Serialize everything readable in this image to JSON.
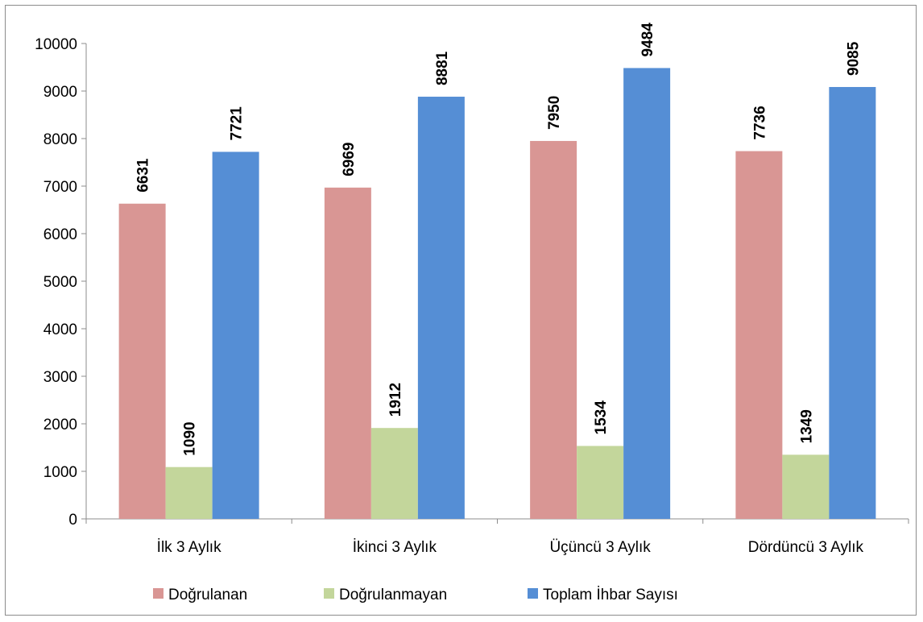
{
  "chart_data": {
    "type": "bar",
    "categories": [
      "İlk 3 Aylık",
      "İkinci 3 Aylık",
      "Üçüncü 3 Aylık",
      "Dördüncü 3 Aylık"
    ],
    "series": [
      {
        "name": "Doğrulanan",
        "values": [
          6631,
          6969,
          7950,
          7736
        ],
        "color": "#d99694"
      },
      {
        "name": "Doğrulanmayan",
        "values": [
          1090,
          1912,
          1534,
          1349
        ],
        "color": "#c3d69b"
      },
      {
        "name": "Toplam İhbar Sayısı",
        "values": [
          7721,
          8881,
          9484,
          9085
        ],
        "color": "#558ed5"
      }
    ],
    "ylim": [
      0,
      10000
    ],
    "yticks": [
      0,
      1000,
      2000,
      3000,
      4000,
      5000,
      6000,
      7000,
      8000,
      9000,
      10000
    ],
    "grid": false,
    "legend_position": "bottom",
    "data_labels": true,
    "data_label_orientation": "vertical"
  }
}
